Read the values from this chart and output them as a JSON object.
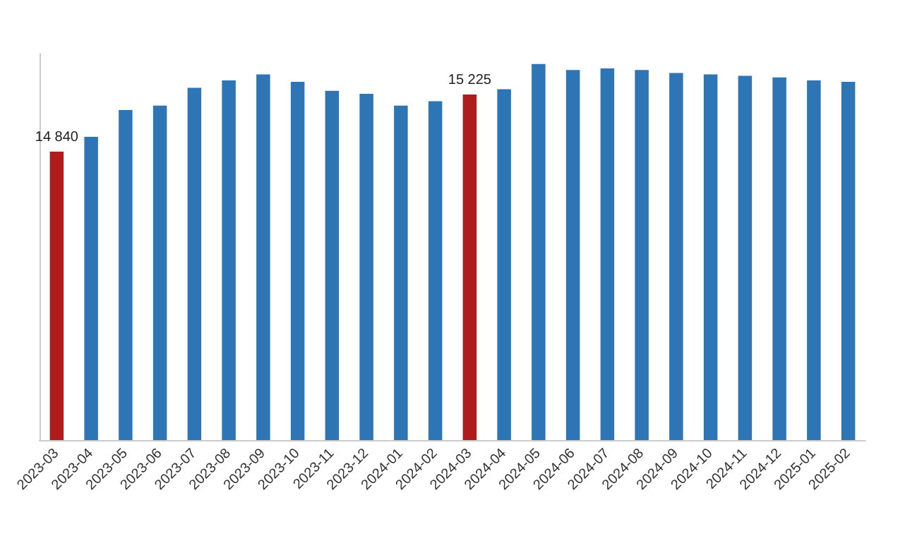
{
  "chart_data": {
    "type": "bar",
    "categories": [
      "2023-03",
      "2023-04",
      "2023-05",
      "2023-06",
      "2023-07",
      "2023-08",
      "2023-09",
      "2023-10",
      "2023-11",
      "2023-12",
      "2024-01",
      "2024-02",
      "2024-03",
      "2024-04",
      "2024-05",
      "2024-06",
      "2024-07",
      "2024-08",
      "2024-09",
      "2024-10",
      "2024-11",
      "2024-12",
      "2025-01",
      "2025-02"
    ],
    "values": [
      14840,
      14940,
      15120,
      15150,
      15270,
      15320,
      15360,
      15310,
      15250,
      15230,
      15150,
      15180,
      15225,
      15260,
      15430,
      15390,
      15400,
      15390,
      15370,
      15360,
      15350,
      15340,
      15320,
      15310
    ],
    "colors": [
      "#b01c1c",
      "#2e75b6",
      "#2e75b6",
      "#2e75b6",
      "#2e75b6",
      "#2e75b6",
      "#2e75b6",
      "#2e75b6",
      "#2e75b6",
      "#2e75b6",
      "#2e75b6",
      "#2e75b6",
      "#b01c1c",
      "#2e75b6",
      "#2e75b6",
      "#2e75b6",
      "#2e75b6",
      "#2e75b6",
      "#2e75b6",
      "#2e75b6",
      "#2e75b6",
      "#2e75b6",
      "#2e75b6",
      "#2e75b6"
    ],
    "value_labels": [
      "14 840",
      null,
      null,
      null,
      null,
      null,
      null,
      null,
      null,
      null,
      null,
      null,
      "15 225",
      null,
      null,
      null,
      null,
      null,
      null,
      null,
      null,
      null,
      null,
      null
    ],
    "ylim": [
      12900,
      15500
    ],
    "tick_labels": "x"
  }
}
